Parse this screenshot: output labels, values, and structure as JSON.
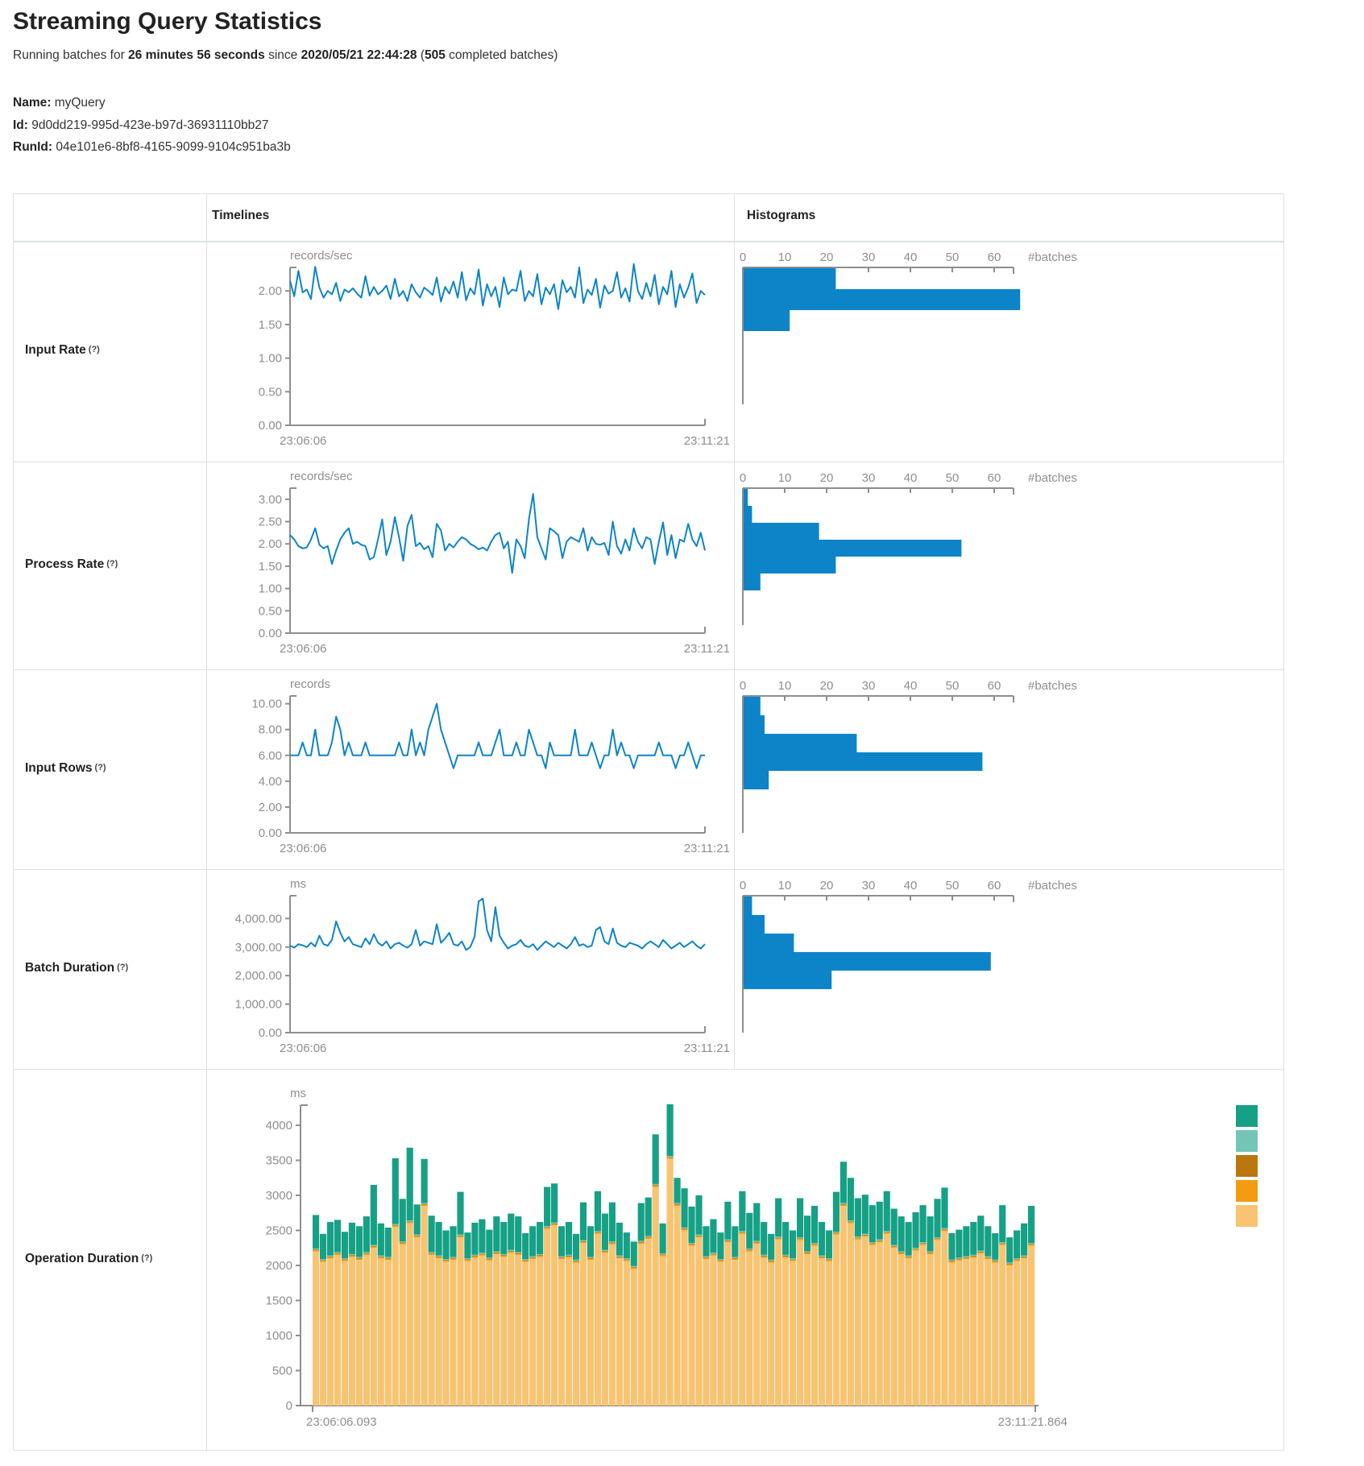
{
  "page": {
    "title": "Streaming Query Statistics",
    "subtitle": {
      "prefix": "Running batches for ",
      "duration": "26 minutes 56 seconds",
      "mid": " since ",
      "start_time": "2020/05/21 22:44:28",
      "open": " (",
      "batches": "505",
      "suffix": " completed batches)"
    },
    "name_label": "Name:",
    "name_value": "myQuery",
    "id_label": "Id:",
    "id_value": "9d0dd219-995d-423e-b97d-36931110bb27",
    "runid_label": "RunId:",
    "runid_value": "04e101e6-8bf8-4165-9099-9104c951ba3b"
  },
  "table": {
    "header": {
      "timelines": "Timelines",
      "histograms": "Histograms"
    },
    "rows": [
      {
        "label": "Input Rate",
        "hint": "(?)"
      },
      {
        "label": "Process Rate",
        "hint": "(?)"
      },
      {
        "label": "Input Rows",
        "hint": "(?)"
      },
      {
        "label": "Batch Duration",
        "hint": "(?)"
      },
      {
        "label": "Operation Duration",
        "hint": "(?)"
      }
    ]
  },
  "chart_data": {
    "colors": {
      "line": "#0D84C8",
      "histogram_bar": "#0D84C8",
      "axis": "#8E8E8E",
      "tick_text": "#8E8E8E",
      "op_series": {
        "base": "#F8C471",
        "orange": "#F39C12",
        "dark_amber": "#B9770E",
        "light_teal": "#73C6B6",
        "teal": "#16A085"
      },
      "legend": [
        "#16A085",
        "#73C6B6",
        "#B9770E",
        "#F39C12",
        "#F8C471"
      ]
    },
    "metric_rows": [
      {
        "key": "input_rate",
        "type": "line",
        "unit": "records/sec",
        "x_start_label": "23:06:06",
        "x_end_label": "23:11:21",
        "y_max": 2.35,
        "y_tick_values": [
          2.0,
          1.5,
          1.0,
          0.5,
          0.0
        ],
        "y_tick_labels": [
          "2.00",
          "1.50",
          "1.00",
          "0.50",
          "0.00"
        ],
        "values": [
          2.15,
          1.92,
          2.3,
          1.98,
          2.02,
          1.88,
          2.36,
          2.05,
          1.9,
          2.0,
          1.95,
          2.12,
          1.85,
          2.02,
          1.98,
          2.04,
          1.96,
          1.9,
          2.22,
          1.93,
          2.06,
          1.95,
          2.0,
          2.08,
          1.88,
          2.18,
          1.92,
          2.0,
          1.85,
          2.1,
          1.98,
          1.9,
          2.05,
          2.0,
          1.94,
          2.2,
          1.84,
          2.06,
          1.96,
          2.14,
          1.9,
          2.28,
          1.86,
          2.04,
          1.95,
          2.32,
          1.78,
          2.1,
          1.92,
          2.06,
          1.76,
          2.2,
          1.95,
          2.02,
          2.0,
          2.3,
          1.85,
          2.0,
          1.92,
          2.25,
          1.8,
          2.05,
          1.95,
          2.1,
          1.73,
          2.16,
          1.98,
          2.06,
          1.9,
          2.35,
          1.82,
          2.02,
          1.94,
          2.18,
          1.75,
          2.08,
          1.96,
          2.0,
          2.28,
          1.9,
          2.04,
          1.84,
          2.4,
          2.0,
          1.88,
          2.12,
          1.92,
          2.24,
          1.8,
          2.06,
          1.95,
          2.3,
          1.76,
          2.1,
          1.9,
          2.05,
          2.26,
          1.82,
          2.0,
          1.94
        ],
        "histogram": {
          "unit": "#batches",
          "x_tick_values": [
            0,
            10,
            20,
            30,
            40,
            50,
            60
          ],
          "x_tick_labels": [
            "0",
            "10",
            "20",
            "30",
            "40",
            "50",
            "60"
          ],
          "bins": [
            22,
            66,
            11
          ]
        }
      },
      {
        "key": "process_rate",
        "type": "line",
        "unit": "records/sec",
        "x_start_label": "23:06:06",
        "x_end_label": "23:11:21",
        "y_max": 3.25,
        "y_tick_values": [
          3.0,
          2.5,
          2.0,
          1.5,
          1.0,
          0.5,
          0.0
        ],
        "y_tick_labels": [
          "3.00",
          "2.50",
          "2.00",
          "1.50",
          "1.00",
          "0.50",
          "0.00"
        ],
        "values": [
          2.2,
          2.1,
          1.95,
          1.9,
          1.92,
          2.1,
          2.35,
          1.98,
          1.9,
          1.95,
          1.55,
          1.85,
          2.1,
          2.25,
          2.35,
          2.0,
          2.05,
          1.98,
          1.95,
          1.65,
          1.7,
          2.1,
          2.55,
          1.75,
          2.05,
          2.6,
          2.15,
          1.62,
          2.4,
          2.65,
          1.95,
          2.02,
          1.88,
          1.95,
          1.7,
          2.45,
          2.3,
          1.85,
          2.0,
          1.92,
          2.05,
          2.15,
          2.1,
          2.0,
          1.95,
          1.88,
          1.92,
          1.85,
          2.05,
          2.2,
          2.25,
          1.9,
          2.05,
          1.35,
          2.1,
          1.95,
          1.68,
          2.55,
          3.12,
          2.15,
          1.9,
          1.65,
          2.35,
          2.28,
          2.2,
          1.68,
          2.05,
          2.15,
          2.1,
          2.05,
          2.35,
          1.85,
          2.15,
          2.0,
          1.98,
          2.02,
          1.75,
          2.5,
          1.95,
          1.78,
          2.1,
          1.85,
          2.35,
          2.05,
          1.9,
          2.15,
          2.1,
          1.55,
          2.05,
          2.48,
          1.75,
          2.2,
          1.68,
          2.1,
          2.05,
          2.45,
          2.1,
          1.95,
          2.25,
          1.85
        ],
        "histogram": {
          "unit": "#batches",
          "x_tick_values": [
            0,
            10,
            20,
            30,
            40,
            50,
            60
          ],
          "x_tick_labels": [
            "0",
            "10",
            "20",
            "30",
            "40",
            "50",
            "60"
          ],
          "bins": [
            1,
            2,
            18,
            52,
            22,
            4
          ]
        }
      },
      {
        "key": "input_rows",
        "type": "line",
        "unit": "records",
        "x_start_label": "23:06:06",
        "x_end_label": "23:11:21",
        "y_max": 10.6,
        "y_tick_values": [
          10,
          8,
          6,
          4,
          2,
          0
        ],
        "y_tick_labels": [
          "10.00",
          "8.00",
          "6.00",
          "4.00",
          "2.00",
          "0.00"
        ],
        "values": [
          6,
          6,
          6,
          7,
          6,
          6,
          8,
          6,
          6,
          6,
          7,
          9,
          8,
          6,
          7,
          6,
          6,
          6,
          7,
          6,
          6,
          6,
          6,
          6,
          6,
          6,
          7,
          6,
          6,
          8,
          6,
          7,
          6,
          8,
          9,
          10,
          8,
          7,
          6,
          5,
          6,
          6,
          6,
          6,
          6,
          7,
          6,
          6,
          6,
          7,
          8,
          6,
          6,
          6,
          7,
          6,
          6,
          8,
          7,
          6,
          6,
          5,
          7,
          6,
          6,
          6,
          6,
          6,
          8,
          6,
          6,
          6,
          7,
          6,
          5,
          6,
          6,
          8,
          6,
          7,
          6,
          6,
          5,
          6,
          6,
          6,
          6,
          6,
          7,
          6,
          6,
          6,
          5,
          6,
          6,
          7,
          6,
          5,
          6,
          6
        ],
        "histogram": {
          "unit": "#batches",
          "x_tick_values": [
            0,
            10,
            20,
            30,
            40,
            50,
            60
          ],
          "x_tick_labels": [
            "0",
            "10",
            "20",
            "30",
            "40",
            "50",
            "60"
          ],
          "bins": [
            4,
            5,
            27,
            57,
            6
          ]
        }
      },
      {
        "key": "batch_duration",
        "type": "line",
        "unit": "ms",
        "x_start_label": "23:06:06",
        "x_end_label": "23:11:21",
        "y_max": 4800,
        "y_tick_values": [
          4000,
          3000,
          2000,
          1000,
          0
        ],
        "y_tick_labels": [
          "4,000.00",
          "3,000.00",
          "2,000.00",
          "1,000.00",
          "0.00"
        ],
        "values": [
          3050,
          2980,
          3100,
          3060,
          3000,
          3150,
          3020,
          3400,
          3100,
          3050,
          3250,
          3900,
          3500,
          3200,
          3350,
          3100,
          3050,
          3000,
          3300,
          3100,
          3450,
          3150,
          3050,
          3200,
          2950,
          3100,
          3150,
          3050,
          2980,
          3100,
          3600,
          3050,
          3200,
          3150,
          3100,
          3800,
          3150,
          3300,
          3500,
          3100,
          3050,
          3200,
          2900,
          3000,
          3350,
          4600,
          4700,
          3600,
          3200,
          4400,
          3400,
          3150,
          2950,
          3050,
          3100,
          3250,
          3050,
          3000,
          3100,
          2900,
          3050,
          3200,
          3100,
          3000,
          3150,
          3050,
          2950,
          3100,
          3350,
          3050,
          3100,
          3000,
          3050,
          3600,
          3700,
          3200,
          3100,
          3650,
          3150,
          3050,
          3000,
          3150,
          3100,
          3050,
          2950,
          3100,
          3200,
          3100,
          3000,
          3250,
          3100,
          2950,
          3050,
          3150,
          3000,
          3100,
          3200,
          3050,
          2950,
          3100
        ],
        "histogram": {
          "unit": "#batches",
          "x_tick_values": [
            0,
            10,
            20,
            30,
            40,
            50,
            60
          ],
          "x_tick_labels": [
            "0",
            "10",
            "20",
            "30",
            "40",
            "50",
            "60"
          ],
          "bins": [
            2,
            5,
            12,
            59,
            21
          ]
        }
      }
    ],
    "operation_duration": {
      "key": "operation_duration",
      "type": "stacked-bar",
      "unit": "ms",
      "x_start_label": "23:06:06.093",
      "x_end_label": "23:11:21.864",
      "y_max": 4300,
      "y_tick_values": [
        4000,
        3500,
        3000,
        2500,
        2000,
        1500,
        1000,
        500,
        0
      ],
      "y_tick_labels": [
        "4000",
        "3500",
        "3000",
        "2500",
        "2000",
        "1500",
        "1000",
        "500",
        "0"
      ],
      "totals": [
        2720,
        2450,
        2620,
        2650,
        2480,
        2610,
        2560,
        2700,
        3150,
        2600,
        2540,
        3530,
        2950,
        3680,
        2870,
        3520,
        2710,
        2620,
        2500,
        2560,
        3050,
        2470,
        2610,
        2660,
        2510,
        2700,
        2620,
        2740,
        2700,
        2460,
        2560,
        2620,
        3120,
        3170,
        2560,
        2620,
        2450,
        2900,
        2560,
        3060,
        2740,
        2900,
        2610,
        2470,
        2340,
        2890,
        2970,
        3870,
        2600,
        4300,
        3250,
        3100,
        2840,
        3000,
        2560,
        2660,
        2470,
        2910,
        2560,
        3060,
        2750,
        2890,
        2620,
        2450,
        2960,
        2620,
        2500,
        2960,
        2710,
        2850,
        2620,
        2500,
        3050,
        3480,
        3250,
        2960,
        3010,
        2860,
        2910,
        3060,
        2810,
        2700,
        2620,
        2760,
        2860,
        2700,
        2950,
        3110,
        2460,
        2510,
        2560,
        2620,
        2710,
        2560,
        2460,
        2860,
        2400,
        2500,
        2600,
        2850
      ],
      "base": [
        2200,
        2050,
        2100,
        2150,
        2060,
        2120,
        2080,
        2150,
        2250,
        2100,
        2080,
        2550,
        2300,
        2600,
        2400,
        2850,
        2150,
        2100,
        2050,
        2080,
        2400,
        2060,
        2110,
        2140,
        2070,
        2160,
        2120,
        2180,
        2150,
        2050,
        2090,
        2120,
        2520,
        2570,
        2090,
        2110,
        2040,
        2320,
        2080,
        2450,
        2180,
        2300,
        2100,
        2060,
        1950,
        2310,
        2380,
        3120,
        2130,
        3520,
        2850,
        2500,
        2280,
        2400,
        2090,
        2140,
        2050,
        2330,
        2080,
        2450,
        2200,
        2310,
        2110,
        2040,
        2370,
        2110,
        2060,
        2360,
        2160,
        2280,
        2100,
        2060,
        2440,
        2850,
        2600,
        2370,
        2410,
        2290,
        2330,
        2450,
        2250,
        2160,
        2100,
        2210,
        2290,
        2160,
        2360,
        2490,
        2040,
        2070,
        2090,
        2110,
        2170,
        2090,
        2040,
        2290,
        2000,
        2060,
        2100,
        2280
      ],
      "slivers": {
        "orange": 18,
        "dark_amber": 10,
        "light_teal": 14
      }
    }
  }
}
